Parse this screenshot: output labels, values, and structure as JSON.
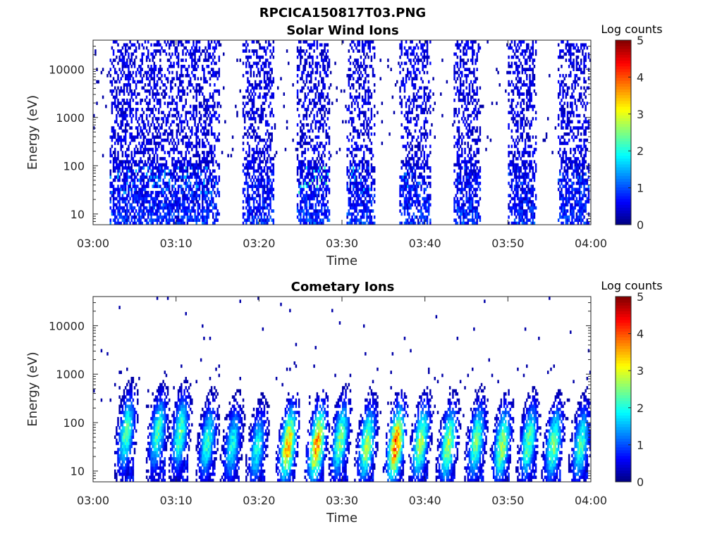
{
  "figure": {
    "title": "RPCICA150817T03.PNG"
  },
  "chart_data": [
    {
      "type": "heatmap",
      "title": "Solar Wind Ions",
      "xlabel": "Time",
      "ylabel": "Energy (eV)",
      "y_scale": "log",
      "xlim": [
        "03:00",
        "04:00"
      ],
      "ylim": [
        6,
        40000
      ],
      "x_ticks": [
        "03:00",
        "03:10",
        "03:20",
        "03:30",
        "03:40",
        "03:50",
        "04:00"
      ],
      "y_ticks": [
        "10",
        "100",
        "1000",
        "10000"
      ],
      "colorbar": {
        "label": "Log counts",
        "min": 0,
        "max": 5,
        "ticks": [
          "0",
          "1",
          "2",
          "3",
          "4",
          "5"
        ],
        "colormap": "jet"
      },
      "bursts": [
        {
          "start_min": 2.0,
          "end_min": 15.2,
          "peak_log_counts": 1.6
        },
        {
          "start_min": 18.0,
          "end_min": 21.8,
          "peak_log_counts": 1.0
        },
        {
          "start_min": 24.5,
          "end_min": 28.5,
          "peak_log_counts": 2.6
        },
        {
          "start_min": 30.5,
          "end_min": 34.0,
          "peak_log_counts": 1.6
        },
        {
          "start_min": 37.0,
          "end_min": 40.8,
          "peak_log_counts": 1.4
        },
        {
          "start_min": 43.5,
          "end_min": 46.8,
          "peak_log_counts": 1.2
        },
        {
          "start_min": 50.0,
          "end_min": 53.5,
          "peak_log_counts": 1.2
        },
        {
          "start_min": 56.0,
          "end_min": 59.9,
          "peak_log_counts": 1.3
        }
      ]
    },
    {
      "type": "heatmap",
      "title": "Cometary Ions",
      "xlabel": "Time",
      "ylabel": "Energy (eV)",
      "y_scale": "log",
      "xlim": [
        "03:00",
        "04:00"
      ],
      "ylim": [
        6,
        40000
      ],
      "x_ticks": [
        "03:00",
        "03:10",
        "03:20",
        "03:30",
        "03:40",
        "03:50",
        "04:00"
      ],
      "y_ticks": [
        "10",
        "100",
        "1000",
        "10000"
      ],
      "colorbar": {
        "label": "Log counts",
        "min": 0,
        "max": 5,
        "ticks": [
          "0",
          "1",
          "2",
          "3",
          "4",
          "5"
        ],
        "colormap": "jet"
      },
      "bursts": [
        {
          "center_min": 4.0,
          "peak_energy_eV": 60,
          "peak_log_counts": 2.4
        },
        {
          "center_min": 7.8,
          "peak_energy_eV": 60,
          "peak_log_counts": 2.3
        },
        {
          "center_min": 10.5,
          "peak_energy_eV": 60,
          "peak_log_counts": 2.4
        },
        {
          "center_min": 13.8,
          "peak_energy_eV": 40,
          "peak_log_counts": 2.2
        },
        {
          "center_min": 16.8,
          "peak_energy_eV": 35,
          "peak_log_counts": 2.0
        },
        {
          "center_min": 19.8,
          "peak_energy_eV": 30,
          "peak_log_counts": 2.0
        },
        {
          "center_min": 23.5,
          "peak_energy_eV": 35,
          "peak_log_counts": 3.6
        },
        {
          "center_min": 27.0,
          "peak_energy_eV": 35,
          "peak_log_counts": 3.8
        },
        {
          "center_min": 29.8,
          "peak_energy_eV": 45,
          "peak_log_counts": 2.6
        },
        {
          "center_min": 33.0,
          "peak_energy_eV": 35,
          "peak_log_counts": 2.8
        },
        {
          "center_min": 36.5,
          "peak_energy_eV": 35,
          "peak_log_counts": 4.0
        },
        {
          "center_min": 39.5,
          "peak_energy_eV": 40,
          "peak_log_counts": 2.8
        },
        {
          "center_min": 42.8,
          "peak_energy_eV": 35,
          "peak_log_counts": 2.8
        },
        {
          "center_min": 46.2,
          "peak_energy_eV": 40,
          "peak_log_counts": 2.5
        },
        {
          "center_min": 49.3,
          "peak_energy_eV": 35,
          "peak_log_counts": 2.8
        },
        {
          "center_min": 52.5,
          "peak_energy_eV": 40,
          "peak_log_counts": 2.5
        },
        {
          "center_min": 55.5,
          "peak_energy_eV": 35,
          "peak_log_counts": 2.6
        },
        {
          "center_min": 58.8,
          "peak_energy_eV": 35,
          "peak_log_counts": 2.3
        }
      ]
    }
  ]
}
